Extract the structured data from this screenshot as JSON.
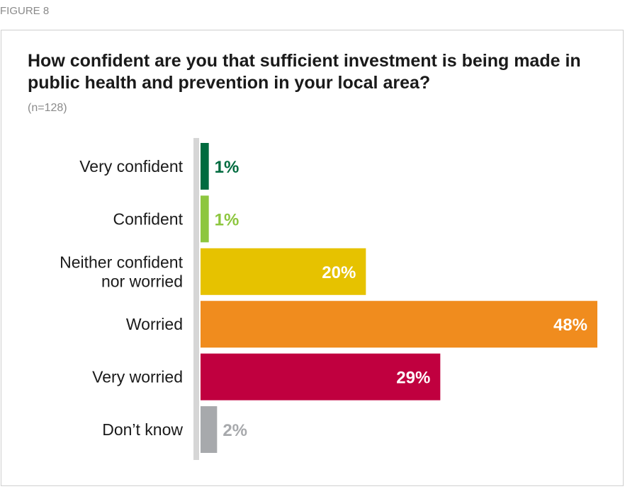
{
  "figure_label": "FIGURE 8",
  "chart_data": {
    "type": "bar",
    "orientation": "horizontal",
    "title": "How confident are you that sufficient investment is being made in public health and prevention in your local area?",
    "subtitle": "(n=128)",
    "categories": [
      [
        "Very confident"
      ],
      [
        "Confident"
      ],
      [
        "Neither confident",
        "nor worried"
      ],
      [
        "Worried"
      ],
      [
        "Very worried"
      ],
      [
        "Don’t know"
      ]
    ],
    "values": [
      1,
      1,
      20,
      48,
      29,
      2
    ],
    "value_labels": [
      "1%",
      "1%",
      "20%",
      "48%",
      "29%",
      "2%"
    ],
    "colors": [
      "#006b3f",
      "#8dc63f",
      "#e6c200",
      "#f08c1e",
      "#c0003f",
      "#a7a9ac"
    ],
    "label_colors": [
      "#006b3f",
      "#8dc63f",
      "#ffffff",
      "#ffffff",
      "#ffffff",
      "#a7a9ac"
    ],
    "axis_color": "#d6d6d6",
    "xlim": [
      0,
      48
    ],
    "grid": false
  }
}
